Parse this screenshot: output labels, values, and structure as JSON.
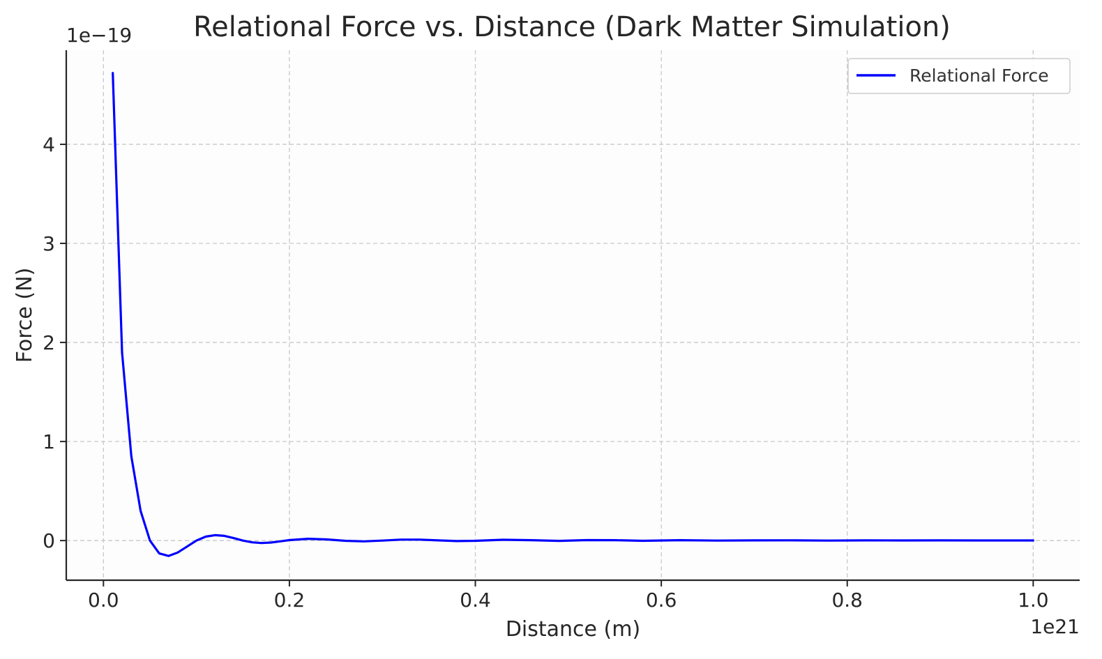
{
  "chart_data": {
    "type": "line",
    "title": "Relational Force vs. Distance (Dark Matter Simulation)",
    "xlabel": "Distance (m)",
    "ylabel": "Force (N)",
    "x_offset_label": "1e21",
    "y_offset_label": "1e−19",
    "xlim": [
      -0.04,
      1.05
    ],
    "ylim": [
      -0.4,
      4.95
    ],
    "x_ticks": [
      0.0,
      0.2,
      0.4,
      0.6,
      0.8,
      1.0
    ],
    "x_tick_labels": [
      "0.0",
      "0.2",
      "0.4",
      "0.6",
      "0.8",
      "1.0"
    ],
    "y_ticks": [
      0,
      1,
      2,
      3,
      4
    ],
    "y_tick_labels": [
      "0",
      "1",
      "2",
      "3",
      "4"
    ],
    "grid": true,
    "grid_style": "dashed",
    "legend_position": "top-right",
    "series": [
      {
        "name": "Relational Force",
        "color": "#0000ff",
        "x": [
          0.01,
          0.02,
          0.03,
          0.04,
          0.05,
          0.06,
          0.07,
          0.08,
          0.09,
          0.1,
          0.11,
          0.12,
          0.13,
          0.14,
          0.15,
          0.16,
          0.17,
          0.18,
          0.19,
          0.2,
          0.22,
          0.24,
          0.26,
          0.28,
          0.3,
          0.32,
          0.34,
          0.36,
          0.38,
          0.4,
          0.43,
          0.46,
          0.49,
          0.52,
          0.55,
          0.58,
          0.62,
          0.66,
          0.7,
          0.74,
          0.78,
          0.82,
          0.86,
          0.9,
          0.94,
          1.0
        ],
        "y": [
          4.72,
          1.9,
          0.85,
          0.3,
          0.0,
          -0.13,
          -0.155,
          -0.12,
          -0.06,
          0.0,
          0.04,
          0.055,
          0.048,
          0.025,
          0.0,
          -0.018,
          -0.025,
          -0.02,
          -0.008,
          0.005,
          0.018,
          0.012,
          -0.002,
          -0.008,
          0.0,
          0.01,
          0.01,
          0.002,
          -0.005,
          -0.002,
          0.008,
          0.004,
          -0.003,
          0.005,
          0.004,
          -0.002,
          0.004,
          0.0,
          0.002,
          0.003,
          0.0,
          0.002,
          0.001,
          0.002,
          0.001,
          0.001
        ]
      }
    ]
  }
}
